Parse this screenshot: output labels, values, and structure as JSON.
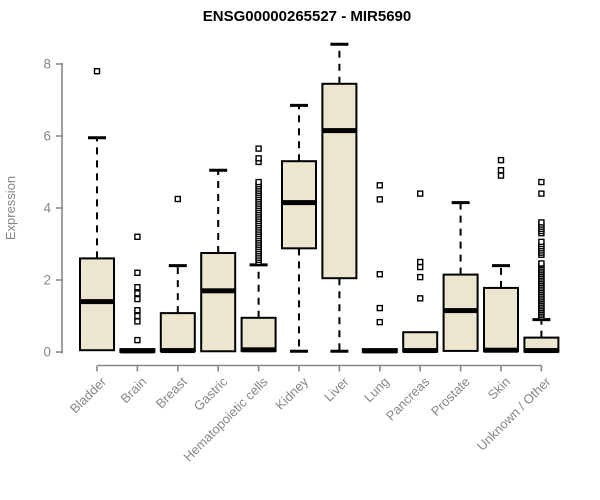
{
  "chart_data": {
    "type": "box",
    "title": "ENSG00000265527 - MIR5690",
    "ylabel": "Expression",
    "ylim": [
      0,
      8
    ],
    "yticks": [
      0,
      2,
      4,
      6,
      8
    ],
    "grid": false,
    "legend": false,
    "axis_color": "#878787",
    "box_fill": "#ece6d0",
    "box_border": "#000000",
    "median_color": "#000000",
    "outlier_fill": "#ffffff",
    "categories": [
      "Bladder",
      "Brain",
      "Breast",
      "Gastric",
      "Hematopoietic cells",
      "Kidney",
      "Liver",
      "Lung",
      "Pancreas",
      "Prostate",
      "Skin",
      "Unknown / Other"
    ],
    "series": [
      {
        "category": "Bladder",
        "whisker_low": null,
        "q1": 0.05,
        "median": 1.4,
        "q3": 2.6,
        "whisker_high": 5.95,
        "outliers": [
          7.8
        ]
      },
      {
        "category": "Brain",
        "whisker_low": null,
        "q1": 0.0,
        "median": 0.03,
        "q3": 0.08,
        "whisker_high": null,
        "outliers": [
          0.33,
          0.85,
          1.0,
          1.16,
          1.47,
          1.63,
          1.8,
          2.2,
          3.2
        ]
      },
      {
        "category": "Breast",
        "whisker_low": null,
        "q1": 0.02,
        "median": 0.04,
        "q3": 1.08,
        "whisker_high": 2.4,
        "outliers": [
          4.25
        ]
      },
      {
        "category": "Gastric",
        "whisker_low": null,
        "q1": 0.02,
        "median": 1.7,
        "q3": 2.75,
        "whisker_high": 5.05,
        "outliers": []
      },
      {
        "category": "Hematopoietic cells",
        "whisker_low": null,
        "q1": 0.03,
        "median": 0.06,
        "q3": 0.95,
        "whisker_high": 2.42,
        "outliers": [
          2.5,
          2.56,
          2.62,
          2.68,
          2.74,
          2.8,
          2.86,
          2.92,
          2.98,
          3.04,
          3.1,
          3.16,
          3.22,
          3.28,
          3.34,
          3.4,
          3.46,
          3.52,
          3.58,
          3.64,
          3.7,
          3.76,
          3.82,
          3.88,
          3.94,
          4.0,
          4.06,
          4.12,
          4.18,
          4.24,
          4.3,
          4.36,
          4.42,
          4.48,
          4.54,
          4.6,
          4.66,
          4.72,
          5.28,
          5.38,
          5.65
        ]
      },
      {
        "category": "Kidney",
        "whisker_low": 0.02,
        "q1": 2.88,
        "median": 4.15,
        "q3": 5.3,
        "whisker_high": 6.85,
        "outliers": []
      },
      {
        "category": "Liver",
        "whisker_low": 0.02,
        "q1": 2.05,
        "median": 6.15,
        "q3": 7.45,
        "whisker_high": 8.55,
        "outliers": []
      },
      {
        "category": "Lung",
        "whisker_low": null,
        "q1": 0.0,
        "median": 0.03,
        "q3": 0.08,
        "whisker_high": null,
        "outliers": [
          0.83,
          1.22,
          2.16,
          4.24,
          4.63
        ]
      },
      {
        "category": "Pancreas",
        "whisker_low": null,
        "q1": 0.01,
        "median": 0.04,
        "q3": 0.55,
        "whisker_high": null,
        "outliers": [
          1.49,
          2.08,
          2.36,
          2.5,
          4.4
        ]
      },
      {
        "category": "Prostate",
        "whisker_low": null,
        "q1": 0.03,
        "median": 1.15,
        "q3": 2.15,
        "whisker_high": 4.15,
        "outliers": []
      },
      {
        "category": "Skin",
        "whisker_low": null,
        "q1": 0.02,
        "median": 0.05,
        "q3": 1.78,
        "whisker_high": 2.4,
        "outliers": [
          4.9,
          5.05,
          5.33
        ]
      },
      {
        "category": "Unknown / Other",
        "whisker_low": null,
        "q1": 0.01,
        "median": 0.04,
        "q3": 0.4,
        "whisker_high": 0.9,
        "outliers": [
          0.97,
          1.02,
          1.07,
          1.12,
          1.17,
          1.22,
          1.27,
          1.32,
          1.37,
          1.42,
          1.47,
          1.52,
          1.57,
          1.62,
          1.67,
          1.72,
          1.77,
          1.82,
          1.87,
          1.92,
          1.97,
          2.02,
          2.07,
          2.12,
          2.17,
          2.22,
          2.27,
          2.32,
          2.37,
          2.42,
          2.46,
          2.7,
          2.76,
          2.82,
          2.88,
          2.94,
          3.0,
          3.06,
          3.3,
          3.36,
          3.42,
          3.48,
          3.54,
          3.6,
          4.4,
          4.72
        ]
      }
    ]
  }
}
